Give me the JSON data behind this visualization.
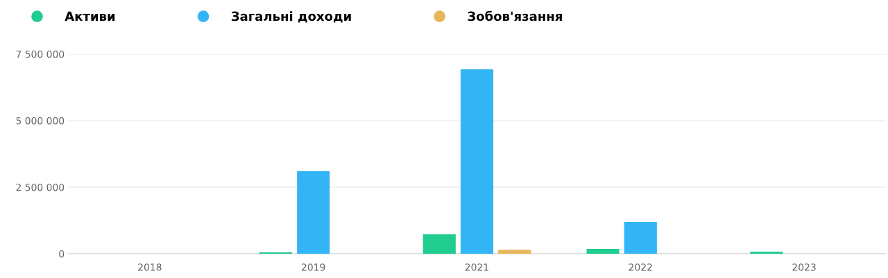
{
  "chart_data": {
    "type": "bar",
    "categories": [
      "2018",
      "2019",
      "2021",
      "2022",
      "2023"
    ],
    "series": [
      {
        "name": "Активи",
        "color": "#20cc8e",
        "values": [
          0,
          50000,
          730000,
          180000,
          80000
        ]
      },
      {
        "name": "Загальні доходи",
        "color": "#33b5f5",
        "values": [
          0,
          3100000,
          6930000,
          1200000,
          null
        ]
      },
      {
        "name": "Зобов'язання",
        "color": "#e8b65a",
        "values": [
          0,
          0,
          150000,
          0,
          null
        ]
      }
    ],
    "ylim": [
      0,
      7500000
    ],
    "yticks": [
      {
        "value": 0,
        "label": "0"
      },
      {
        "value": 2500000,
        "label": "2 500 000"
      },
      {
        "value": 5000000,
        "label": "5 000 000"
      },
      {
        "value": 7500000,
        "label": "7 500 000"
      }
    ],
    "grid": "y",
    "legend": "top left"
  }
}
